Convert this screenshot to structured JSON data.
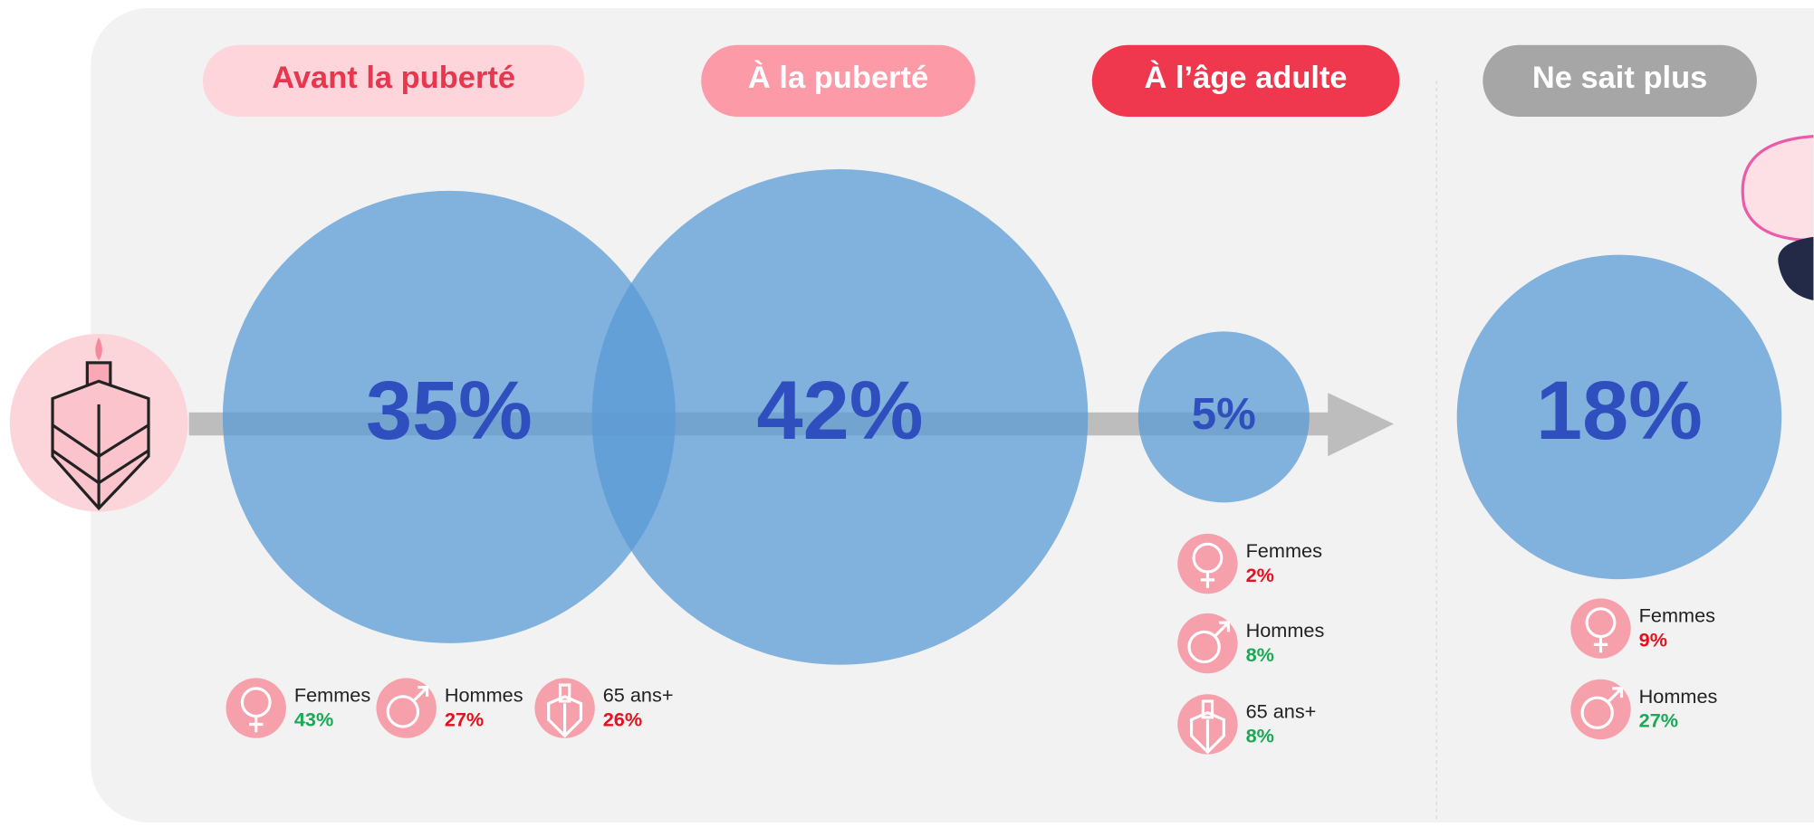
{
  "chart_data": {
    "type": "bubble",
    "categories": [
      "Avant la puberté",
      "À la puberté",
      "À l’âge adulte",
      "Ne sait plus"
    ],
    "category_colors": [
      "#fdd5db",
      "#fc9aa7",
      "#ef374e",
      "#a6a6a6"
    ],
    "category_text_colors": [
      "#e8364f",
      "#ffffff",
      "#ffffff",
      "#ffffff"
    ],
    "values": [
      35,
      42,
      5,
      18
    ],
    "value_labels": [
      "35%",
      "42%",
      "5%",
      "18%"
    ],
    "color": "#5b9bd5",
    "label_color": "#2f4fbf",
    "breakdown": [
      [
        {
          "name": "Femmes",
          "label": "43%",
          "color": "#1aaa55"
        },
        {
          "name": "Hommes",
          "label": "27%",
          "color": "#e8101f"
        },
        {
          "name": "65 ans+",
          "label": "26%",
          "color": "#e8101f"
        }
      ],
      [],
      [
        {
          "name": "Femmes",
          "label": "2%",
          "color": "#e8101f"
        },
        {
          "name": "Hommes",
          "label": "8%",
          "color": "#1aaa55"
        },
        {
          "name": "65 ans+",
          "label": "8%",
          "color": "#1aaa55"
        }
      ],
      [
        {
          "name": "Femmes",
          "label": "9%",
          "color": "#e8101f"
        },
        {
          "name": "Hommes",
          "label": "27%",
          "color": "#1aaa55"
        }
      ]
    ]
  }
}
